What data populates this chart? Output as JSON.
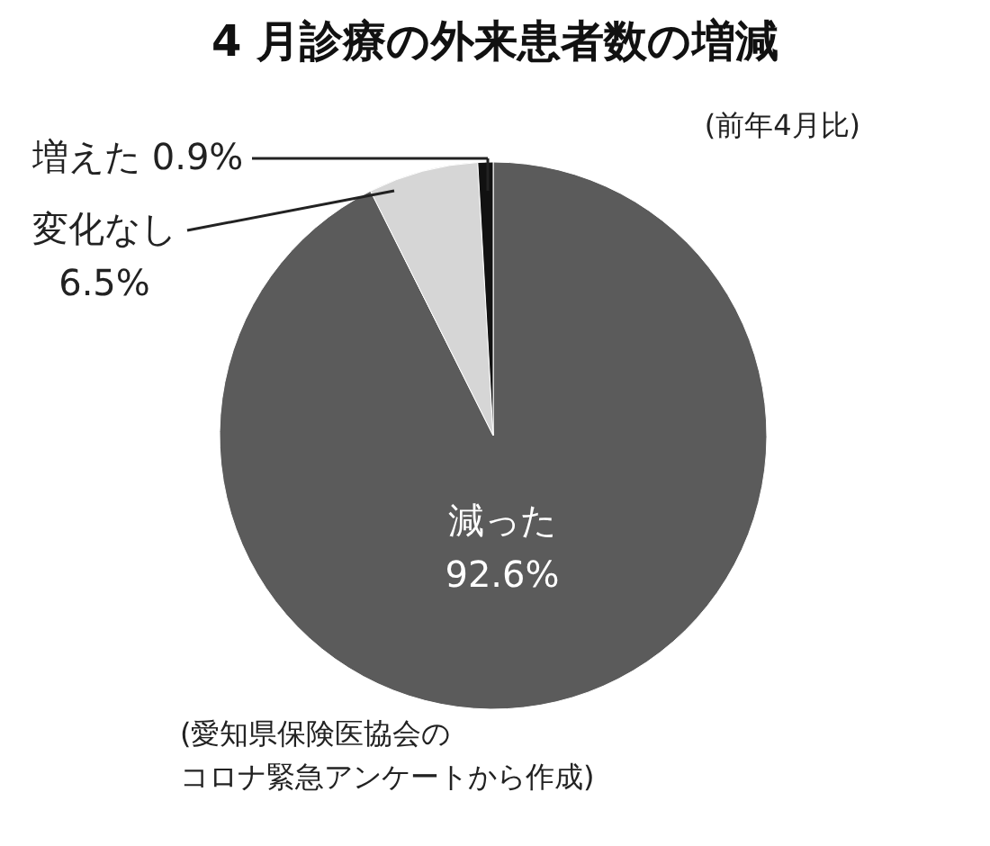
{
  "chart_data": {
    "type": "pie",
    "title": "4 月診療の外来患者数の増減",
    "subtitle": "(前年4月比)",
    "categories": [
      "減った",
      "変化なし",
      "増えた"
    ],
    "values": [
      92.6,
      6.5,
      0.9
    ],
    "colors": [
      "#5b5b5b",
      "#d6d6d6",
      "#111111"
    ],
    "value_labels": [
      "92.6%",
      "6.5%",
      "0.9%"
    ],
    "annotations": [
      "(愛知県保険医協会の",
      "コロナ緊急アンケートから作成)"
    ]
  }
}
